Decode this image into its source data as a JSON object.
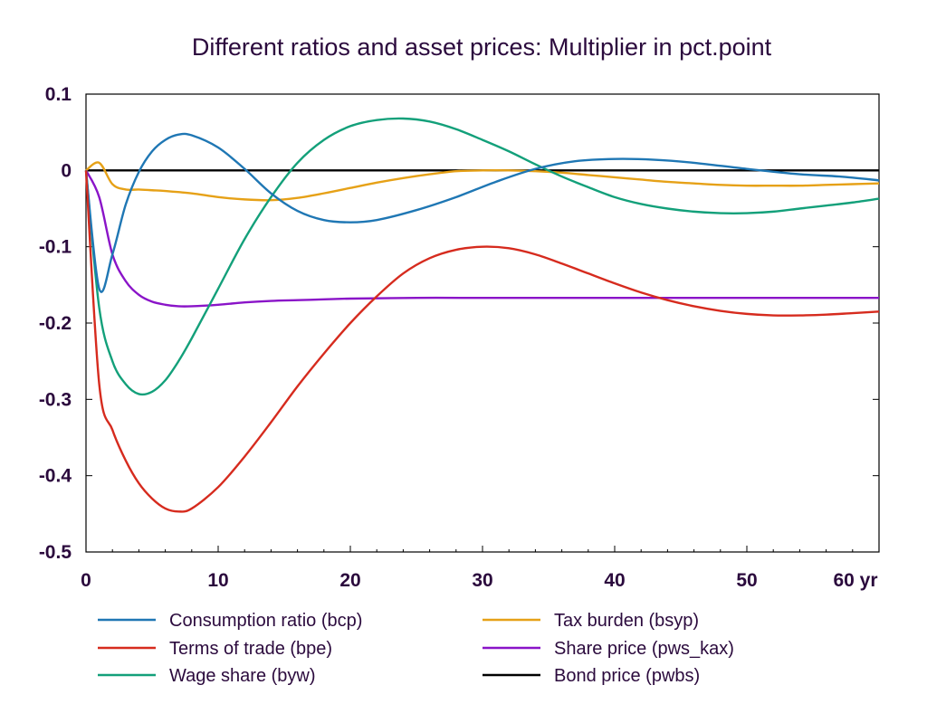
{
  "chart_data": {
    "type": "line",
    "title": "Different ratios and asset prices: Multiplier in pct.point",
    "xlabel": "",
    "ylabel": "",
    "xlim": [
      0,
      60
    ],
    "ylim": [
      -0.5,
      0.1
    ],
    "x_ticks": [
      "0",
      "10",
      "20",
      "30",
      "40",
      "50",
      "60 yr"
    ],
    "x_tick_values": [
      0,
      10,
      20,
      30,
      40,
      50,
      60
    ],
    "y_ticks": [
      "0.1",
      "0",
      "-0.1",
      "-0.2",
      "-0.3",
      "-0.4",
      "-0.5"
    ],
    "y_tick_values": [
      0.1,
      0,
      -0.1,
      -0.2,
      -0.3,
      -0.4,
      -0.5
    ],
    "grid": false,
    "legend_position": "bottom",
    "series": [
      {
        "name": "Consumption ratio (bcp)",
        "color": "#1f77b4",
        "x": [
          0,
          1,
          2,
          3,
          4,
          5,
          6,
          7,
          8,
          10,
          12,
          14,
          16,
          18,
          20,
          22,
          25,
          28,
          31,
          34,
          37,
          40,
          43,
          46,
          50,
          54,
          57,
          60
        ],
        "values": [
          0,
          -0.155,
          -0.11,
          -0.045,
          -0.002,
          0.025,
          0.04,
          0.047,
          0.046,
          0.03,
          0.002,
          -0.03,
          -0.053,
          -0.065,
          -0.068,
          -0.065,
          -0.052,
          -0.035,
          -0.015,
          0.002,
          0.012,
          0.015,
          0.014,
          0.01,
          0.002,
          -0.005,
          -0.008,
          -0.013
        ]
      },
      {
        "name": "Terms of trade (bpe)",
        "color": "#d62b1e",
        "x": [
          0,
          1,
          2,
          3,
          4,
          5,
          6,
          7,
          8,
          10,
          12,
          14,
          16,
          18,
          20,
          22,
          24,
          26,
          28,
          30,
          32,
          34,
          36,
          38,
          40,
          42,
          44,
          46,
          48,
          50,
          52,
          54,
          56,
          58,
          60
        ],
        "values": [
          0,
          -0.28,
          -0.34,
          -0.38,
          -0.41,
          -0.43,
          -0.443,
          -0.447,
          -0.443,
          -0.415,
          -0.375,
          -0.33,
          -0.283,
          -0.24,
          -0.2,
          -0.165,
          -0.135,
          -0.115,
          -0.104,
          -0.1,
          -0.102,
          -0.11,
          -0.122,
          -0.135,
          -0.148,
          -0.16,
          -0.17,
          -0.178,
          -0.184,
          -0.188,
          -0.19,
          -0.19,
          -0.189,
          -0.187,
          -0.185
        ]
      },
      {
        "name": "Wage share (byw)",
        "color": "#13a07a",
        "x": [
          0,
          1,
          2,
          3,
          4,
          5,
          6,
          7,
          8,
          10,
          12,
          14,
          16,
          18,
          20,
          22,
          24,
          26,
          28,
          30,
          32,
          34,
          36,
          38,
          40,
          42,
          44,
          46,
          48,
          50,
          52,
          54,
          56,
          58,
          60
        ],
        "values": [
          0,
          -0.18,
          -0.25,
          -0.28,
          -0.293,
          -0.29,
          -0.275,
          -0.25,
          -0.22,
          -0.155,
          -0.09,
          -0.035,
          0.01,
          0.04,
          0.058,
          0.066,
          0.068,
          0.064,
          0.054,
          0.04,
          0.025,
          0.008,
          -0.008,
          -0.022,
          -0.035,
          -0.044,
          -0.05,
          -0.054,
          -0.056,
          -0.056,
          -0.054,
          -0.05,
          -0.046,
          -0.042,
          -0.037
        ]
      },
      {
        "name": "Tax burden (bsyp)",
        "color": "#e6a117",
        "x": [
          0,
          1,
          2,
          3,
          4,
          5,
          6,
          8,
          10,
          12,
          14,
          16,
          18,
          20,
          22,
          24,
          26,
          28,
          30,
          32,
          34,
          36,
          38,
          40,
          42,
          44,
          46,
          48,
          50,
          52,
          54,
          56,
          58,
          60
        ],
        "values": [
          0,
          0.01,
          -0.018,
          -0.025,
          -0.025,
          -0.026,
          -0.027,
          -0.03,
          -0.035,
          -0.038,
          -0.039,
          -0.036,
          -0.03,
          -0.023,
          -0.016,
          -0.01,
          -0.005,
          -0.001,
          0.0,
          0.0,
          -0.001,
          -0.003,
          -0.006,
          -0.009,
          -0.012,
          -0.015,
          -0.017,
          -0.019,
          -0.02,
          -0.02,
          -0.02,
          -0.019,
          -0.018,
          -0.017
        ]
      },
      {
        "name": "Share price (pws_kax)",
        "color": "#8a14c8",
        "x": [
          0,
          1,
          2,
          3,
          4,
          5,
          6,
          7,
          8,
          10,
          12,
          14,
          16,
          18,
          20,
          25,
          30,
          40,
          50,
          60
        ],
        "values": [
          0,
          -0.035,
          -0.11,
          -0.145,
          -0.163,
          -0.172,
          -0.176,
          -0.178,
          -0.178,
          -0.176,
          -0.173,
          -0.171,
          -0.17,
          -0.169,
          -0.168,
          -0.167,
          -0.167,
          -0.167,
          -0.167,
          -0.167
        ]
      },
      {
        "name": "Bond price (pwbs)",
        "color": "#000000",
        "x": [
          0,
          60
        ],
        "values": [
          0,
          0
        ]
      }
    ]
  }
}
